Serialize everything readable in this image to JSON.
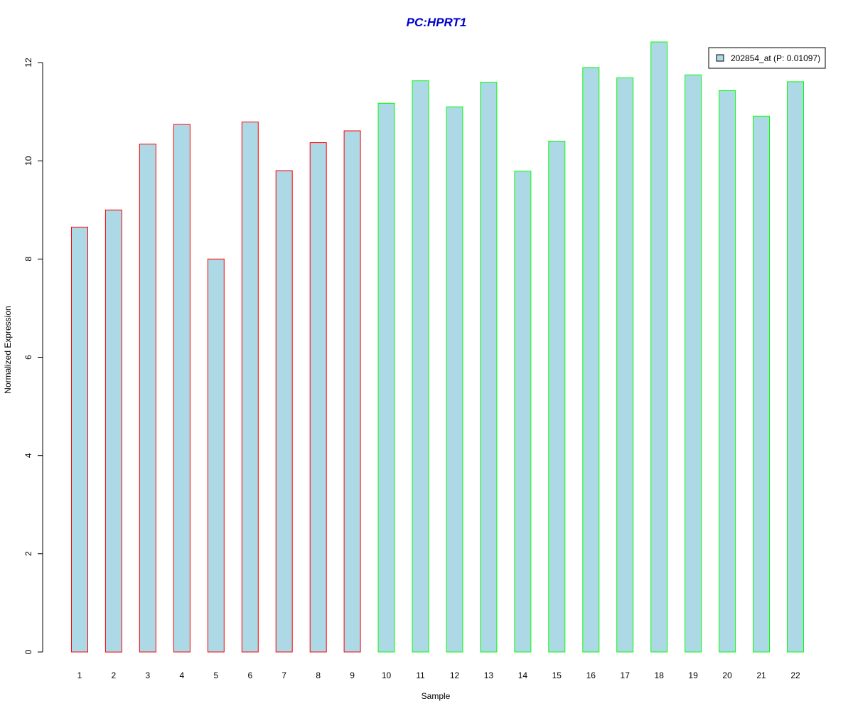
{
  "chart_data": {
    "type": "bar",
    "title": "PC:HPRT1",
    "xlabel": "Sample",
    "ylabel": "Normalized Expression",
    "categories": [
      "1",
      "2",
      "3",
      "4",
      "5",
      "6",
      "7",
      "8",
      "9",
      "10",
      "11",
      "12",
      "13",
      "14",
      "15",
      "16",
      "17",
      "18",
      "19",
      "20",
      "21",
      "22"
    ],
    "values": [
      8.65,
      9.0,
      10.34,
      10.74,
      8.0,
      10.79,
      9.8,
      10.37,
      10.61,
      11.17,
      11.63,
      11.1,
      11.6,
      9.79,
      10.4,
      11.9,
      11.69,
      12.42,
      11.75,
      11.43,
      10.91,
      11.61
    ],
    "groups": [
      "red",
      "red",
      "red",
      "red",
      "red",
      "red",
      "red",
      "red",
      "red",
      "green",
      "green",
      "green",
      "green",
      "green",
      "green",
      "green",
      "green",
      "green",
      "green",
      "green",
      "green",
      "green"
    ],
    "ylim": [
      0,
      12
    ],
    "yticks": [
      "0",
      "2",
      "4",
      "6",
      "8",
      "10",
      "12"
    ],
    "legend": {
      "label": "202854_at (P: 0.01097)",
      "position": "top-right"
    },
    "grid": false,
    "colors": {
      "fill": "#add8e6",
      "red_border": "#ff0000",
      "green_border": "#00ff00",
      "title": "#0000cd"
    }
  }
}
